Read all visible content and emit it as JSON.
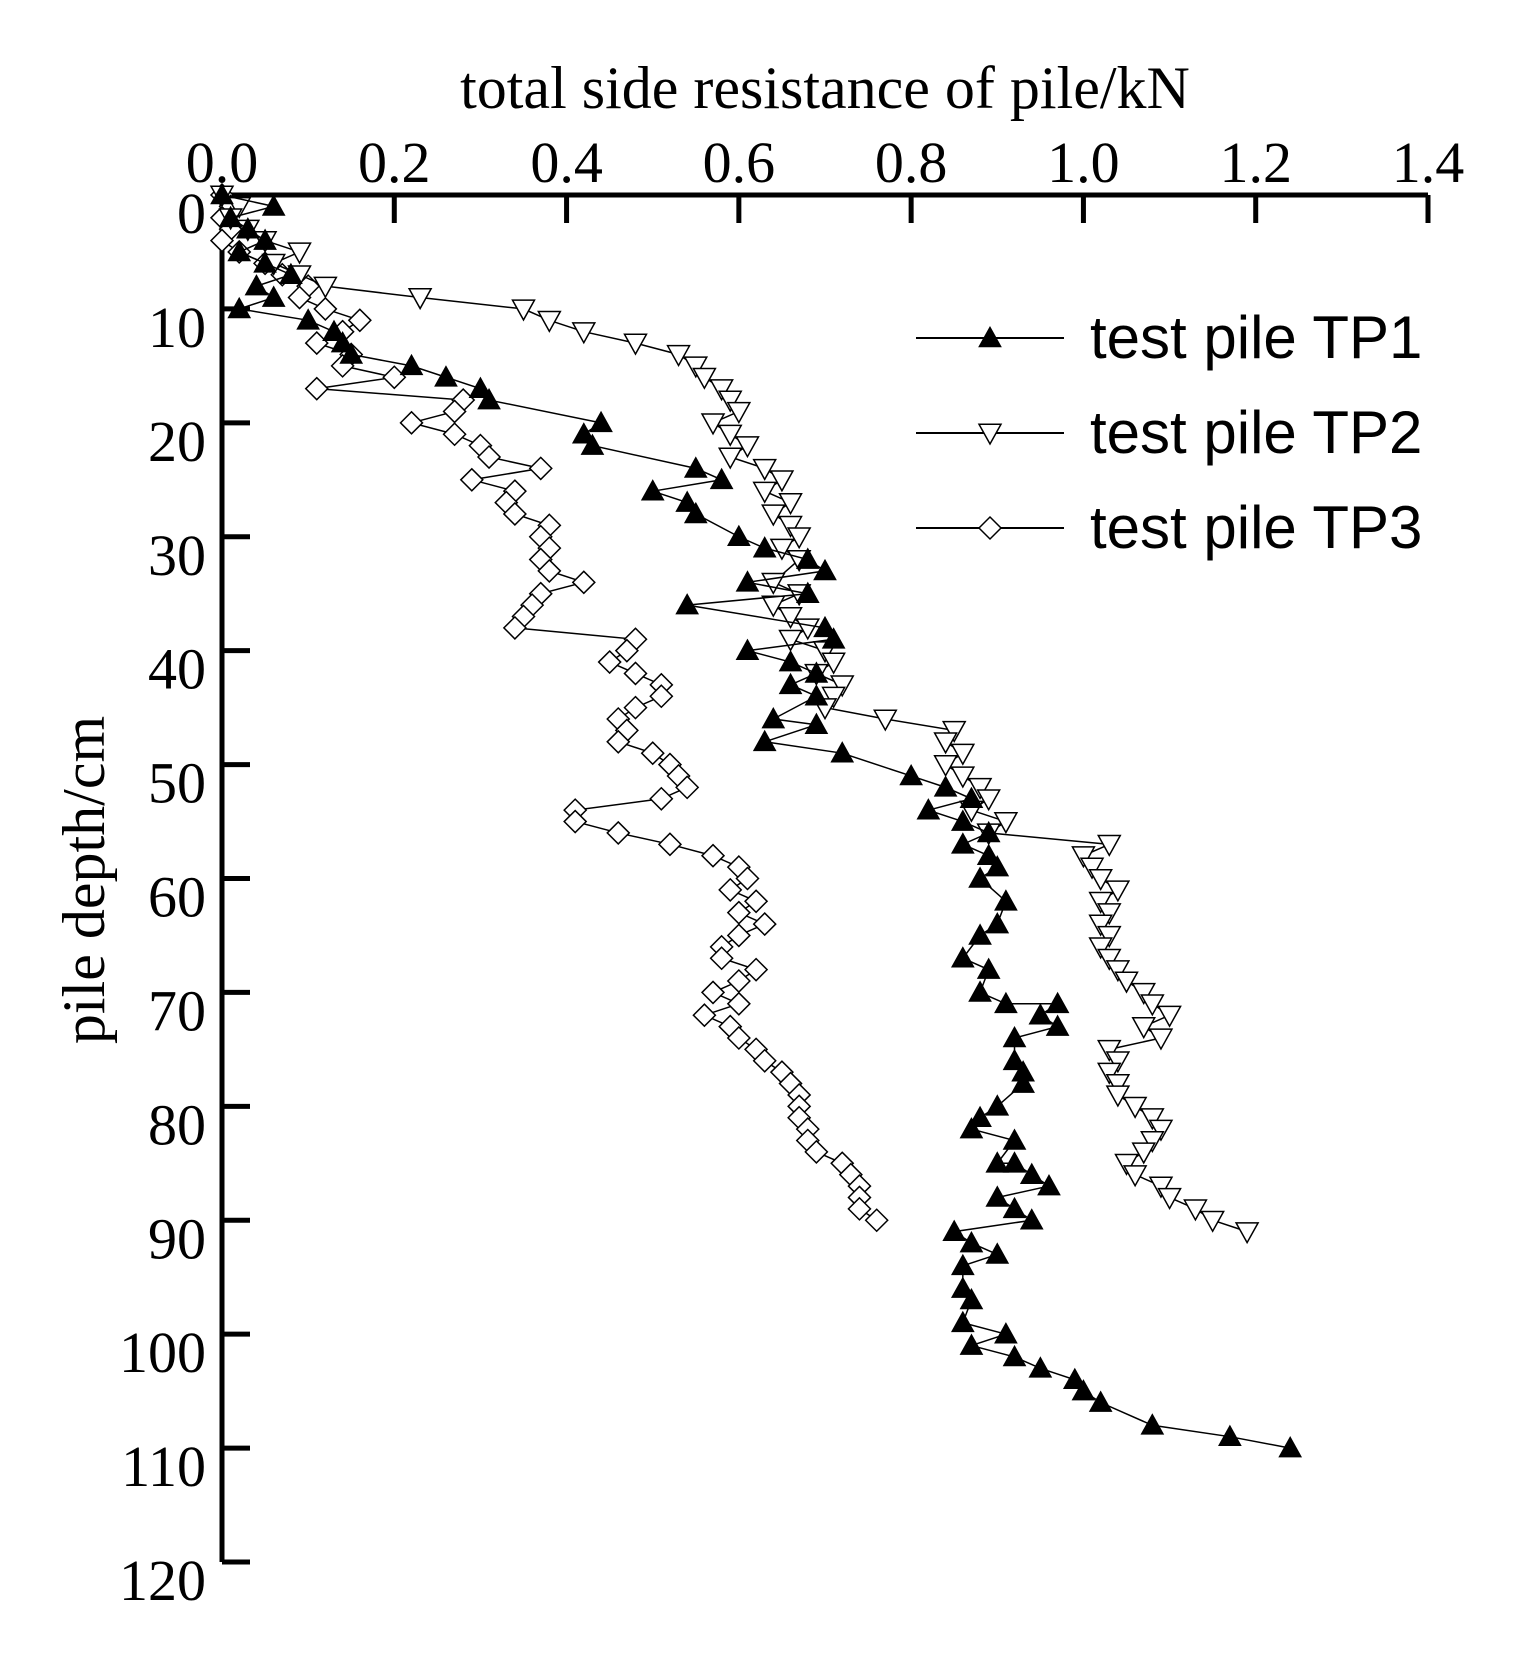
{
  "chart_data": {
    "type": "line",
    "xlabel": "total side resistance of pile/kN",
    "ylabel": "pile depth/cm",
    "xlim": [
      0.0,
      1.4
    ],
    "ylim": [
      0,
      120
    ],
    "x_axis_position": "top",
    "y_axis_inverted": true,
    "grid": false,
    "legend_position": "top-right",
    "x_ticks": [
      "0.0",
      "0.2",
      "0.4",
      "0.6",
      "0.8",
      "1.0",
      "1.2",
      "1.4"
    ],
    "y_ticks": [
      "0",
      "10",
      "20",
      "30",
      "40",
      "50",
      "60",
      "70",
      "80",
      "90",
      "100",
      "110",
      "120"
    ],
    "series": [
      {
        "name": "test pile TP1",
        "marker": "triangle-up-filled",
        "points": [
          [
            0.0,
            0
          ],
          [
            0.06,
            1
          ],
          [
            0.01,
            2
          ],
          [
            0.03,
            3
          ],
          [
            0.05,
            4
          ],
          [
            0.02,
            5
          ],
          [
            0.05,
            6
          ],
          [
            0.08,
            7
          ],
          [
            0.04,
            8
          ],
          [
            0.06,
            9
          ],
          [
            0.02,
            10
          ],
          [
            0.1,
            11
          ],
          [
            0.13,
            12
          ],
          [
            0.14,
            13
          ],
          [
            0.15,
            14
          ],
          [
            0.22,
            15
          ],
          [
            0.26,
            16
          ],
          [
            0.3,
            17
          ],
          [
            0.31,
            18
          ],
          [
            0.44,
            20
          ],
          [
            0.42,
            21
          ],
          [
            0.43,
            22
          ],
          [
            0.55,
            24
          ],
          [
            0.58,
            25
          ],
          [
            0.5,
            26
          ],
          [
            0.54,
            27
          ],
          [
            0.55,
            28
          ],
          [
            0.6,
            30
          ],
          [
            0.63,
            31
          ],
          [
            0.68,
            32
          ],
          [
            0.7,
            33
          ],
          [
            0.61,
            34
          ],
          [
            0.68,
            35
          ],
          [
            0.54,
            36
          ],
          [
            0.7,
            38
          ],
          [
            0.71,
            39
          ],
          [
            0.61,
            40
          ],
          [
            0.66,
            41
          ],
          [
            0.69,
            42
          ],
          [
            0.66,
            43
          ],
          [
            0.69,
            44
          ],
          [
            0.64,
            46
          ],
          [
            0.69,
            46.5
          ],
          [
            0.63,
            48
          ],
          [
            0.72,
            49
          ],
          [
            0.8,
            51
          ],
          [
            0.84,
            52
          ],
          [
            0.87,
            53
          ],
          [
            0.82,
            54
          ],
          [
            0.86,
            55
          ],
          [
            0.89,
            56
          ],
          [
            0.86,
            57
          ],
          [
            0.89,
            58
          ],
          [
            0.9,
            59
          ],
          [
            0.88,
            60
          ],
          [
            0.91,
            62
          ],
          [
            0.9,
            64
          ],
          [
            0.88,
            65
          ],
          [
            0.86,
            67
          ],
          [
            0.89,
            68
          ],
          [
            0.88,
            70
          ],
          [
            0.91,
            71
          ],
          [
            0.97,
            71
          ],
          [
            0.95,
            72
          ],
          [
            0.97,
            73
          ],
          [
            0.92,
            74
          ],
          [
            0.92,
            76
          ],
          [
            0.93,
            77
          ],
          [
            0.93,
            78
          ],
          [
            0.9,
            80
          ],
          [
            0.88,
            81
          ],
          [
            0.87,
            82
          ],
          [
            0.92,
            83
          ],
          [
            0.9,
            85
          ],
          [
            0.92,
            85
          ],
          [
            0.94,
            86
          ],
          [
            0.96,
            87
          ],
          [
            0.9,
            88
          ],
          [
            0.92,
            89
          ],
          [
            0.94,
            90
          ],
          [
            0.85,
            91
          ],
          [
            0.87,
            92
          ],
          [
            0.9,
            93
          ],
          [
            0.86,
            94
          ],
          [
            0.86,
            96
          ],
          [
            0.87,
            97
          ],
          [
            0.86,
            99
          ],
          [
            0.91,
            100
          ],
          [
            0.87,
            101
          ],
          [
            0.92,
            102
          ],
          [
            0.95,
            103
          ],
          [
            0.99,
            104
          ],
          [
            1.0,
            105
          ],
          [
            1.02,
            106
          ],
          [
            1.08,
            108
          ],
          [
            1.17,
            109
          ],
          [
            1.24,
            110
          ]
        ]
      },
      {
        "name": "test pile TP2",
        "marker": "triangle-down-open",
        "points": [
          [
            0.0,
            0
          ],
          [
            0.02,
            1
          ],
          [
            0.01,
            2
          ],
          [
            0.03,
            3
          ],
          [
            0.05,
            4
          ],
          [
            0.09,
            5
          ],
          [
            0.06,
            6
          ],
          [
            0.09,
            7
          ],
          [
            0.12,
            8
          ],
          [
            0.23,
            9
          ],
          [
            0.35,
            10
          ],
          [
            0.38,
            11
          ],
          [
            0.42,
            12
          ],
          [
            0.48,
            13
          ],
          [
            0.53,
            14
          ],
          [
            0.55,
            15
          ],
          [
            0.56,
            16
          ],
          [
            0.58,
            17
          ],
          [
            0.59,
            18
          ],
          [
            0.6,
            19
          ],
          [
            0.57,
            20
          ],
          [
            0.59,
            21
          ],
          [
            0.61,
            22
          ],
          [
            0.59,
            23
          ],
          [
            0.63,
            24
          ],
          [
            0.65,
            25
          ],
          [
            0.63,
            26
          ],
          [
            0.66,
            27
          ],
          [
            0.64,
            28
          ],
          [
            0.66,
            29
          ],
          [
            0.67,
            30
          ],
          [
            0.65,
            31
          ],
          [
            0.67,
            32
          ],
          [
            0.64,
            34
          ],
          [
            0.67,
            35
          ],
          [
            0.64,
            36
          ],
          [
            0.66,
            37
          ],
          [
            0.68,
            38
          ],
          [
            0.66,
            39
          ],
          [
            0.7,
            40
          ],
          [
            0.71,
            41
          ],
          [
            0.69,
            42
          ],
          [
            0.72,
            43
          ],
          [
            0.71,
            44
          ],
          [
            0.7,
            45
          ],
          [
            0.77,
            46
          ],
          [
            0.85,
            47
          ],
          [
            0.84,
            48
          ],
          [
            0.86,
            49
          ],
          [
            0.84,
            50
          ],
          [
            0.86,
            51
          ],
          [
            0.88,
            52
          ],
          [
            0.89,
            53
          ],
          [
            0.87,
            54
          ],
          [
            0.91,
            55
          ],
          [
            0.89,
            56
          ],
          [
            1.03,
            57
          ],
          [
            1.0,
            58
          ],
          [
            1.01,
            59
          ],
          [
            1.02,
            60
          ],
          [
            1.04,
            61
          ],
          [
            1.02,
            62
          ],
          [
            1.03,
            63
          ],
          [
            1.02,
            64
          ],
          [
            1.03,
            65
          ],
          [
            1.02,
            66
          ],
          [
            1.03,
            67
          ],
          [
            1.04,
            68
          ],
          [
            1.05,
            69
          ],
          [
            1.07,
            70
          ],
          [
            1.08,
            71
          ],
          [
            1.1,
            72
          ],
          [
            1.07,
            73
          ],
          [
            1.09,
            74
          ],
          [
            1.03,
            75
          ],
          [
            1.04,
            76
          ],
          [
            1.03,
            77
          ],
          [
            1.04,
            78
          ],
          [
            1.04,
            79
          ],
          [
            1.06,
            80
          ],
          [
            1.08,
            81
          ],
          [
            1.09,
            82
          ],
          [
            1.08,
            83
          ],
          [
            1.07,
            84
          ],
          [
            1.05,
            85
          ],
          [
            1.06,
            86
          ],
          [
            1.09,
            87
          ],
          [
            1.1,
            88
          ],
          [
            1.13,
            89
          ],
          [
            1.15,
            90
          ],
          [
            1.19,
            91
          ]
        ]
      },
      {
        "name": "test pile TP3",
        "marker": "diamond-open",
        "points": [
          [
            0.0,
            0
          ],
          [
            0.01,
            1
          ],
          [
            0.0,
            2
          ],
          [
            0.01,
            3
          ],
          [
            0.0,
            4
          ],
          [
            0.02,
            5
          ],
          [
            0.05,
            6
          ],
          [
            0.07,
            7
          ],
          [
            0.1,
            8
          ],
          [
            0.09,
            9
          ],
          [
            0.12,
            10
          ],
          [
            0.16,
            11
          ],
          [
            0.14,
            12
          ],
          [
            0.11,
            13
          ],
          [
            0.15,
            14
          ],
          [
            0.14,
            15
          ],
          [
            0.2,
            16
          ],
          [
            0.11,
            17
          ],
          [
            0.28,
            18
          ],
          [
            0.27,
            19
          ],
          [
            0.22,
            20
          ],
          [
            0.27,
            21
          ],
          [
            0.3,
            22
          ],
          [
            0.31,
            23
          ],
          [
            0.37,
            24
          ],
          [
            0.29,
            25
          ],
          [
            0.34,
            26
          ],
          [
            0.33,
            27
          ],
          [
            0.34,
            28
          ],
          [
            0.38,
            29
          ],
          [
            0.37,
            30
          ],
          [
            0.38,
            31
          ],
          [
            0.37,
            32
          ],
          [
            0.38,
            33
          ],
          [
            0.42,
            34
          ],
          [
            0.37,
            35
          ],
          [
            0.36,
            36
          ],
          [
            0.35,
            37
          ],
          [
            0.34,
            38
          ],
          [
            0.48,
            39
          ],
          [
            0.47,
            40
          ],
          [
            0.45,
            41
          ],
          [
            0.48,
            42
          ],
          [
            0.51,
            43
          ],
          [
            0.51,
            44
          ],
          [
            0.48,
            45
          ],
          [
            0.46,
            46
          ],
          [
            0.47,
            47
          ],
          [
            0.46,
            48
          ],
          [
            0.5,
            49
          ],
          [
            0.52,
            50
          ],
          [
            0.53,
            51
          ],
          [
            0.54,
            52
          ],
          [
            0.51,
            53
          ],
          [
            0.41,
            54
          ],
          [
            0.41,
            55
          ],
          [
            0.46,
            56
          ],
          [
            0.52,
            57
          ],
          [
            0.57,
            58
          ],
          [
            0.6,
            59
          ],
          [
            0.61,
            60
          ],
          [
            0.59,
            61
          ],
          [
            0.62,
            62
          ],
          [
            0.6,
            63
          ],
          [
            0.63,
            64
          ],
          [
            0.6,
            65
          ],
          [
            0.58,
            66
          ],
          [
            0.58,
            67
          ],
          [
            0.62,
            68
          ],
          [
            0.6,
            69
          ],
          [
            0.57,
            70
          ],
          [
            0.6,
            71
          ],
          [
            0.56,
            72
          ],
          [
            0.59,
            73
          ],
          [
            0.6,
            74
          ],
          [
            0.62,
            75
          ],
          [
            0.63,
            76
          ],
          [
            0.65,
            77
          ],
          [
            0.66,
            78
          ],
          [
            0.67,
            79
          ],
          [
            0.67,
            80
          ],
          [
            0.67,
            81
          ],
          [
            0.68,
            82
          ],
          [
            0.68,
            83
          ],
          [
            0.69,
            84
          ],
          [
            0.72,
            85
          ],
          [
            0.73,
            86
          ],
          [
            0.74,
            87
          ],
          [
            0.74,
            88
          ],
          [
            0.74,
            89
          ],
          [
            0.76,
            90
          ]
        ]
      }
    ]
  }
}
